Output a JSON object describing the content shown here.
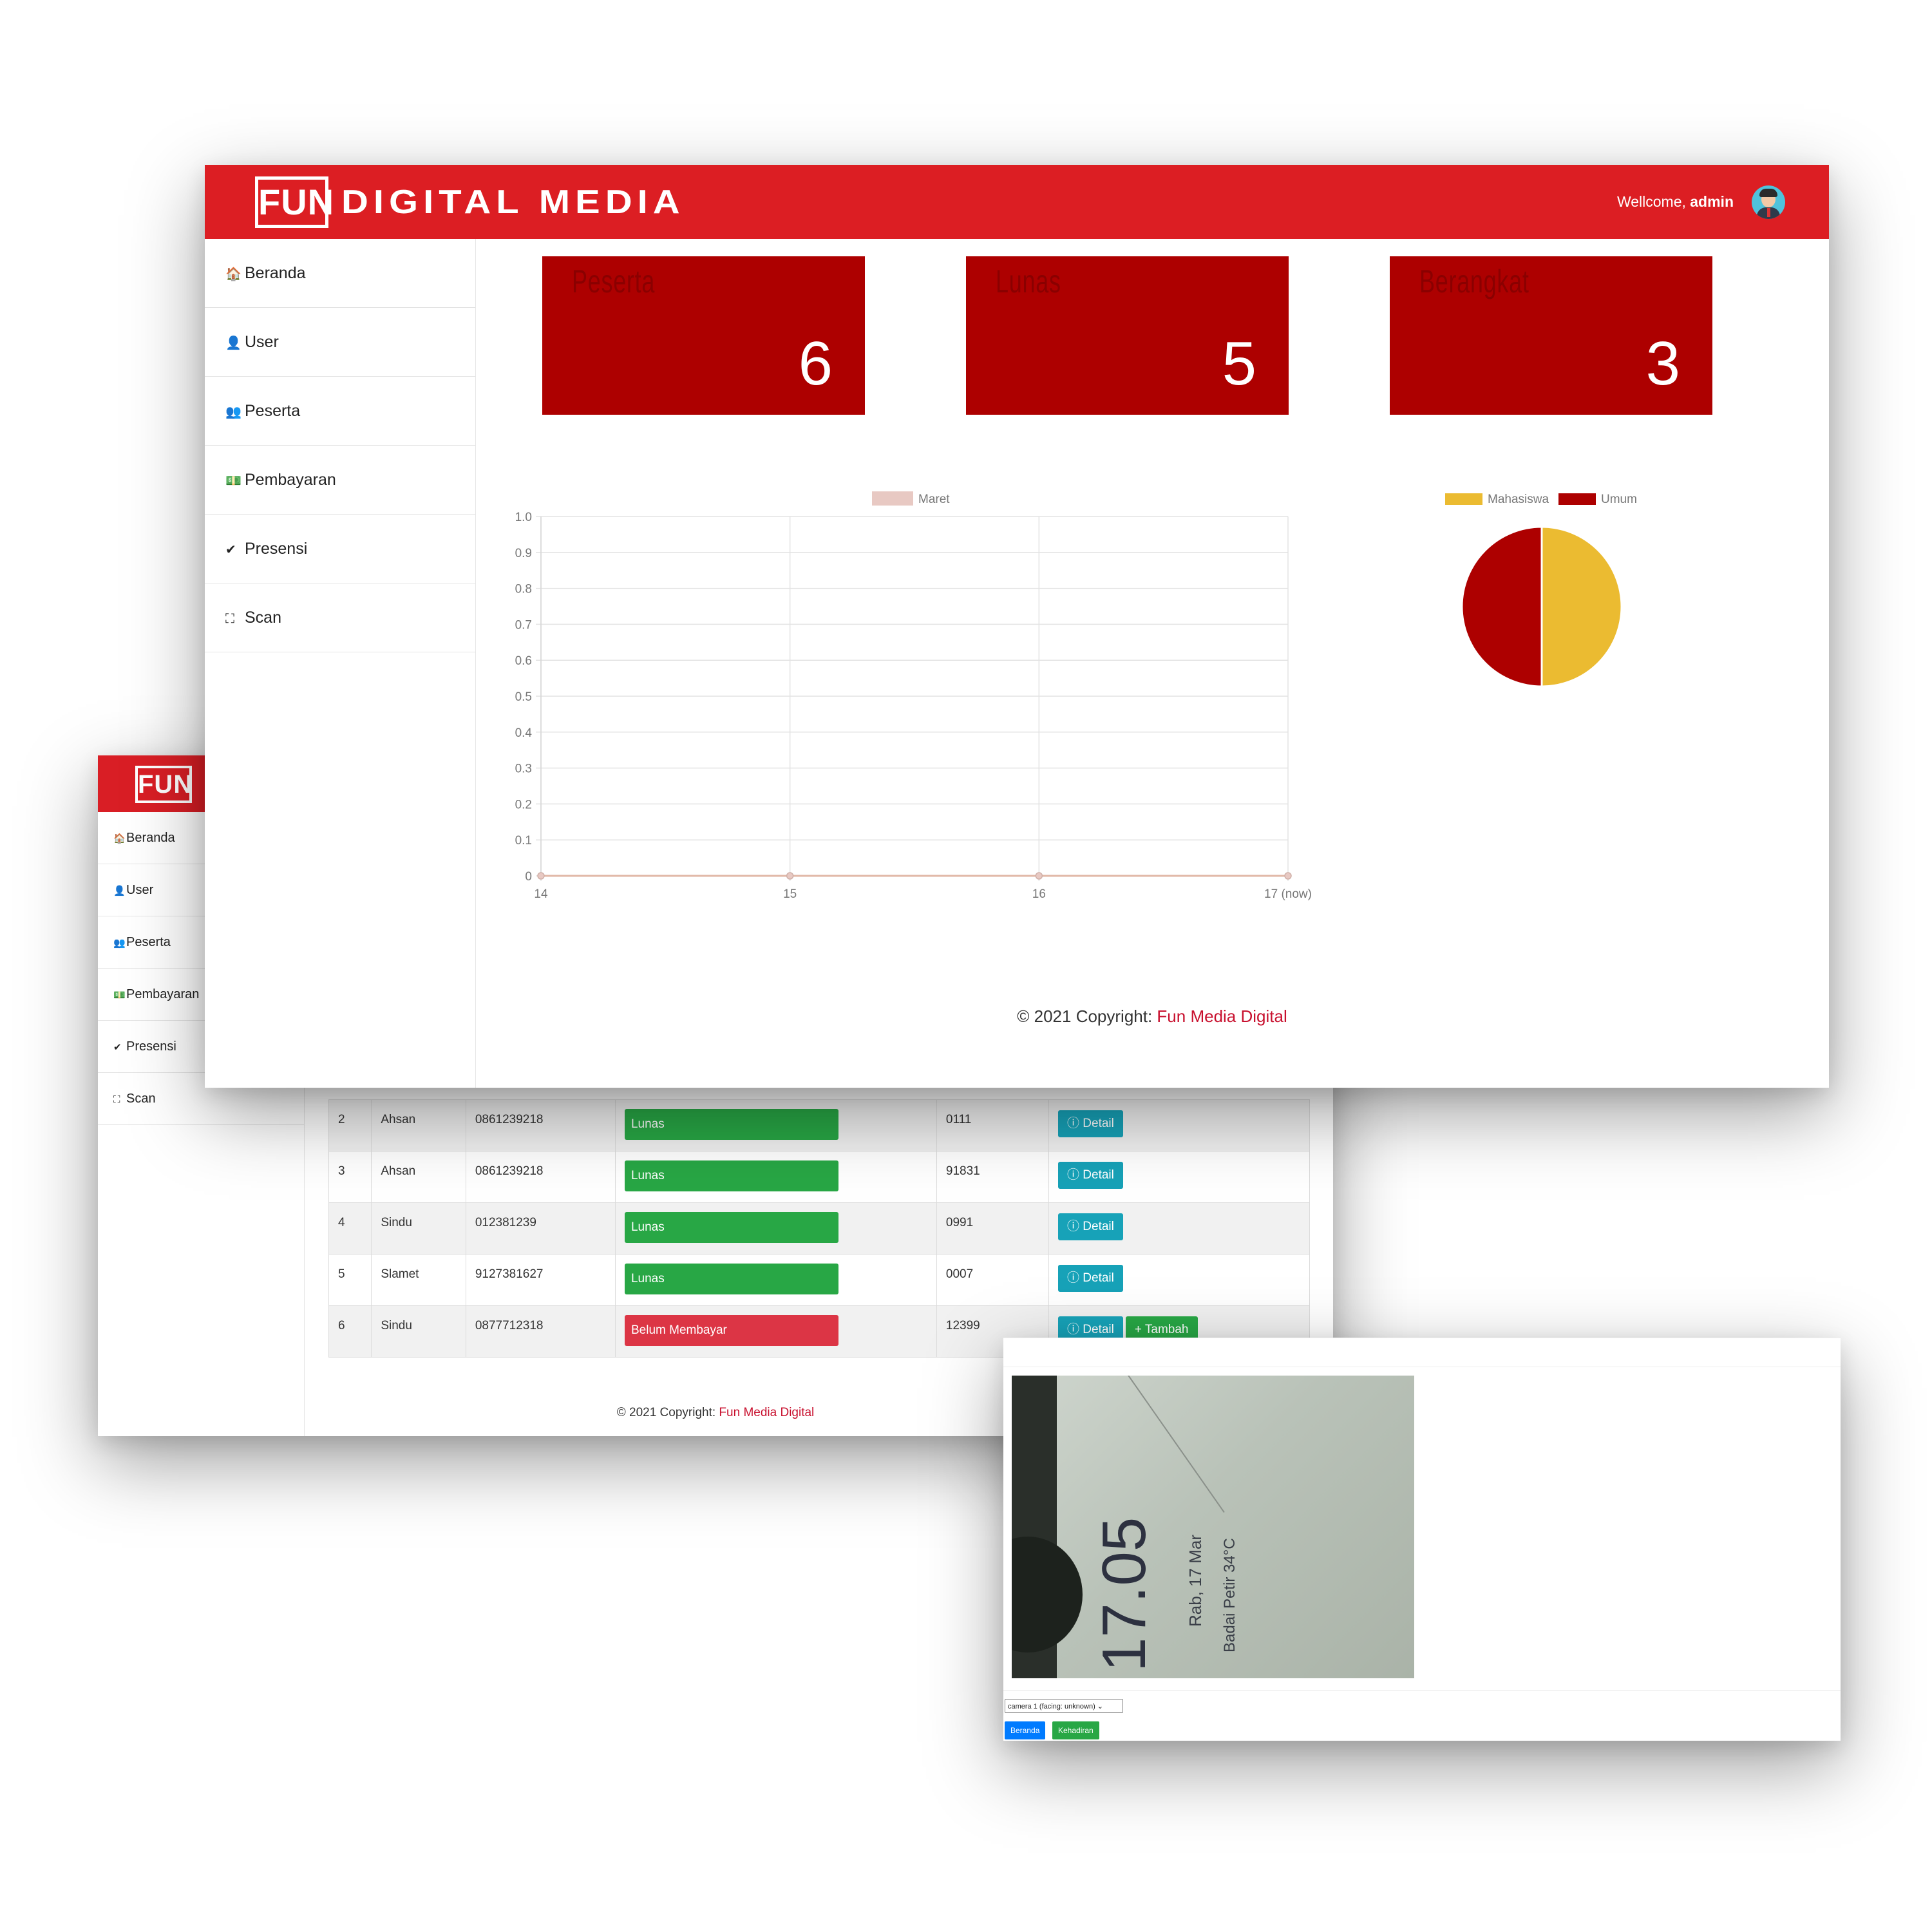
{
  "back_window": {
    "logo": "FUN",
    "sidebar": {
      "items": [
        {
          "icon": "home-icon",
          "glyph": "🏠",
          "label": "Beranda"
        },
        {
          "icon": "user-icon",
          "glyph": "👤",
          "label": "User"
        },
        {
          "icon": "users-icon",
          "glyph": "👥",
          "label": "Peserta"
        },
        {
          "icon": "money-icon",
          "glyph": "💵",
          "label": "Pembayaran"
        },
        {
          "icon": "check-double-icon",
          "glyph": "✔",
          "label": "Presensi"
        },
        {
          "icon": "scan-icon",
          "glyph": "⛶",
          "label": "Scan"
        }
      ]
    },
    "table": {
      "rows": [
        {
          "no": "2",
          "name": "Ahsan",
          "phone": "0861239218",
          "status": "Lunas",
          "status_type": "ok",
          "code": "0111",
          "actions": [
            "Detail"
          ]
        },
        {
          "no": "3",
          "name": "Ahsan",
          "phone": "0861239218",
          "status": "Lunas",
          "status_type": "ok",
          "code": "91831",
          "actions": [
            "Detail"
          ]
        },
        {
          "no": "4",
          "name": "Sindu",
          "phone": "012381239",
          "status": "Lunas",
          "status_type": "ok",
          "code": "0991",
          "actions": [
            "Detail"
          ]
        },
        {
          "no": "5",
          "name": "Slamet",
          "phone": "9127381627",
          "status": "Lunas",
          "status_type": "ok",
          "code": "0007",
          "actions": [
            "Detail"
          ]
        },
        {
          "no": "6",
          "name": "Sindu",
          "phone": "0877712318",
          "status": "Belum Membayar",
          "status_type": "no",
          "code": "12399",
          "actions": [
            "Detail",
            "Tambah"
          ]
        }
      ],
      "detail_label": "ⓘ Detail",
      "add_label": "+ Tambah"
    },
    "footer": {
      "prefix": "© 2021 Copyright: ",
      "link": "Fun Media Digital"
    }
  },
  "scan_window": {
    "camera_text": {
      "time": "17.05",
      "date": "Rab, 17 Mar",
      "weather": "Badai Petir 34°C"
    },
    "camera_select": "camera 1 (facing: unknown)",
    "buttons": {
      "home": "Beranda",
      "attendance": "Kehadiran"
    }
  },
  "main_window": {
    "header": {
      "logo_box": "FUN",
      "logo_text": "DIGITAL MEDIA",
      "welcome_prefix": "Wellcome, ",
      "welcome_user": "admin"
    },
    "sidebar": {
      "items": [
        {
          "icon": "home-icon",
          "glyph": "🏠",
          "label": "Beranda"
        },
        {
          "icon": "user-icon",
          "glyph": "👤",
          "label": "User"
        },
        {
          "icon": "users-icon",
          "glyph": "👥",
          "label": "Peserta"
        },
        {
          "icon": "money-icon",
          "glyph": "💵",
          "label": "Pembayaran"
        },
        {
          "icon": "check-double-icon",
          "glyph": "✔",
          "label": "Presensi"
        },
        {
          "icon": "scan-icon",
          "glyph": "⛶",
          "label": "Scan"
        }
      ]
    },
    "cards": [
      {
        "label": "Peserta",
        "value": "6"
      },
      {
        "label": "Lunas",
        "value": "5"
      },
      {
        "label": "Berangkat",
        "value": "3"
      }
    ],
    "footer": {
      "prefix": "© 2021 Copyright: ",
      "link": "Fun Media Digital"
    }
  },
  "colors": {
    "header_red": "#dc1e23",
    "card_red": "#ad0000",
    "link": "#c8102e",
    "success": "#28a745",
    "danger": "#dc3545",
    "info": "#17a2b8"
  },
  "chart_data": [
    {
      "type": "line",
      "legend": [
        "Maret"
      ],
      "legend_position": "top",
      "x": [
        "14",
        "15",
        "16",
        "17 (now)"
      ],
      "series": [
        {
          "name": "Maret",
          "values": [
            0,
            0,
            0,
            0
          ],
          "color": "#e8c9c3"
        }
      ],
      "ylim": [
        0,
        1.0
      ],
      "yticks": [
        "1.0",
        "0.9",
        "0.8",
        "0.7",
        "0.6",
        "0.5",
        "0.4",
        "0.3",
        "0.2",
        "0.1",
        "0"
      ],
      "grid": true
    },
    {
      "type": "pie",
      "legend_position": "top",
      "slices": [
        {
          "name": "Mahasiswa",
          "value": 50,
          "color": "#ebbb31"
        },
        {
          "name": "Umum",
          "value": 50,
          "color": "#ad0000"
        }
      ]
    }
  ]
}
